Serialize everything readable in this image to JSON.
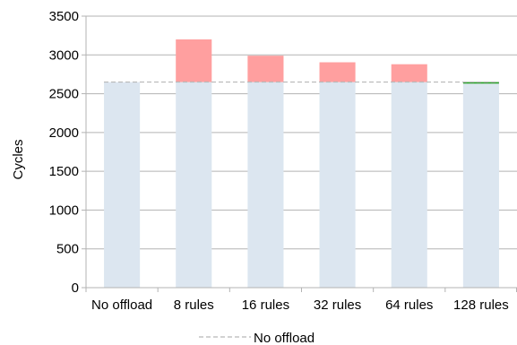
{
  "chart_data": {
    "type": "bar",
    "categories": [
      "No offload",
      "8 rules",
      "16 rules",
      "32 rules",
      "64 rules",
      "128 rules"
    ],
    "series": [
      {
        "values": [
          2650,
          2650,
          2650,
          2650,
          2650,
          2630
        ],
        "color": "#dce6f0"
      },
      {
        "values": [
          0,
          550,
          340,
          255,
          230,
          0
        ],
        "color": "#ff9f9f"
      },
      {
        "values": [
          0,
          0,
          0,
          0,
          0,
          20
        ],
        "color": "#2aa02a"
      }
    ],
    "reference_line": {
      "name": "No offload",
      "value": 2650,
      "color": "#b8b8b8",
      "style": "dashed"
    },
    "ylabel": "Cycles",
    "ylim": [
      0,
      3500
    ],
    "yticks": [
      0,
      500,
      1000,
      1500,
      2000,
      2500,
      3000,
      3500
    ],
    "grid": true,
    "legend_position": "bottom-center"
  }
}
